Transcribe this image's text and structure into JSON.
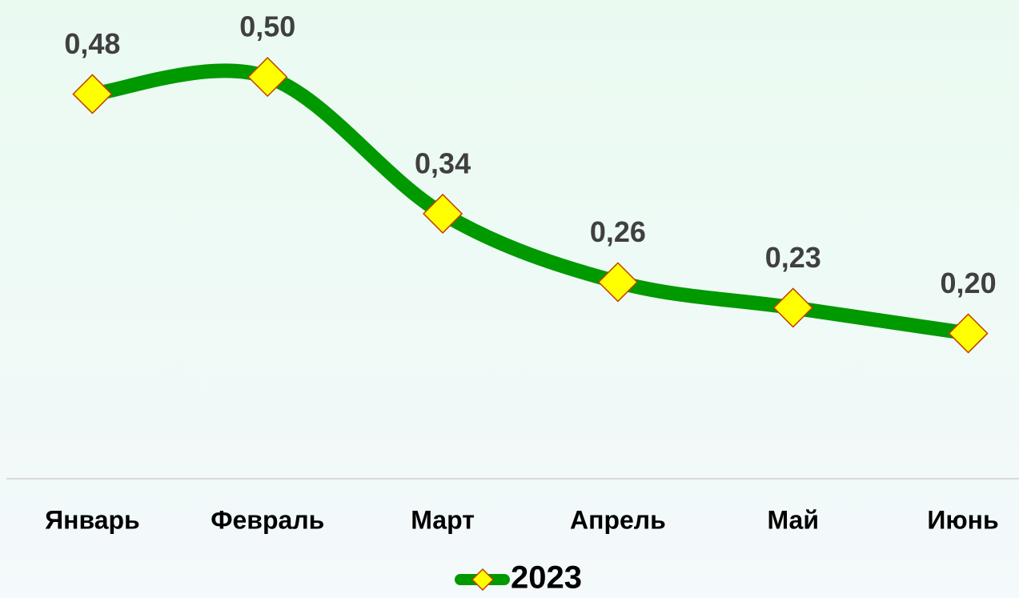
{
  "chart_data": {
    "type": "line",
    "categories": [
      "Январь",
      "Февраль",
      "Март",
      "Апрель",
      "Май",
      "Июнь"
    ],
    "series": [
      {
        "name": "2023",
        "color": "#009900",
        "marker_color": "#ffff00",
        "values": [
          0.48,
          0.5,
          0.34,
          0.26,
          0.23,
          0.2
        ],
        "value_labels": [
          "0,48",
          "0,50",
          "0,34",
          "0,26",
          "0,23",
          "0,20"
        ]
      }
    ],
    "ylim": [
      0.03,
      0.59
    ],
    "smooth": true,
    "legend": "bottom"
  }
}
